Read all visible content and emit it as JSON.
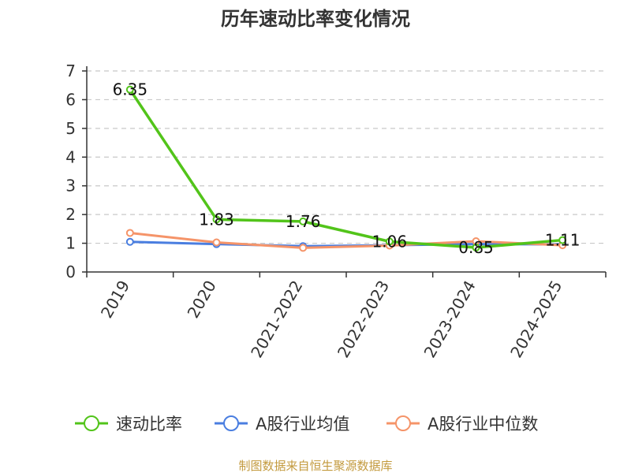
{
  "chart_data": {
    "type": "line",
    "title": "历年速动比率变化情况",
    "categories": [
      "2019",
      "2020",
      "2021-2022",
      "2022-2023",
      "2023-2024",
      "2024-2025"
    ],
    "ylim": [
      0,
      7
    ],
    "yticks": [
      0,
      1,
      2,
      3,
      4,
      5,
      6,
      7
    ],
    "grid": true,
    "legend_position": "bottom",
    "series": [
      {
        "name": "速动比率",
        "color": "#52c41a",
        "values": [
          6.35,
          1.83,
          1.76,
          1.06,
          0.85,
          1.11
        ],
        "labels": [
          "6.35",
          "1.83",
          "1.76",
          "1.06",
          "0.85",
          "1.11"
        ]
      },
      {
        "name": "A股行业均值",
        "color": "#4a7ee0",
        "values": [
          1.05,
          0.97,
          0.9,
          0.93,
          0.97,
          0.96
        ]
      },
      {
        "name": "A股行业中位数",
        "color": "#f59469",
        "values": [
          1.36,
          1.03,
          0.84,
          0.92,
          1.07,
          0.93
        ]
      }
    ],
    "source": "制图数据来自恒生聚源数据库"
  }
}
